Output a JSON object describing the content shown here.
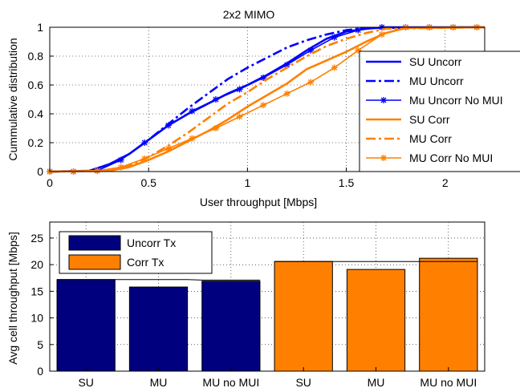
{
  "chart_data": [
    {
      "type": "line",
      "title": "2x2 MIMO",
      "xlabel": "User throughput [Mbps]",
      "ylabel": "Cummulative distribution",
      "xlim": [
        0,
        2.2
      ],
      "ylim": [
        0,
        1
      ],
      "xticks": [
        0,
        0.5,
        1,
        1.5,
        2
      ],
      "xtick_labels": [
        "0",
        "0.5",
        "1",
        "1.5",
        "2"
      ],
      "yticks": [
        0,
        0.2,
        0.4,
        0.6,
        0.8,
        1
      ],
      "ytick_labels": [
        "0",
        "0.2",
        "0.4",
        "0.6",
        "0.8",
        "1"
      ],
      "grid": true,
      "legend_position": "lower-right",
      "series": [
        {
          "name": "SU Uncorr",
          "color": "#0000ff",
          "style": "solid",
          "marker": "none",
          "x": [
            0,
            0.2,
            0.3,
            0.4,
            0.5,
            0.6,
            0.7,
            0.8,
            0.9,
            1.0,
            1.1,
            1.2,
            1.3,
            1.4,
            1.5,
            1.6,
            1.7,
            2.2
          ],
          "y": [
            0,
            0.005,
            0.05,
            0.12,
            0.22,
            0.32,
            0.4,
            0.47,
            0.54,
            0.6,
            0.67,
            0.75,
            0.84,
            0.92,
            0.97,
            0.99,
            1.0,
            1.0
          ]
        },
        {
          "name": "MU Uncorr",
          "color": "#0000ff",
          "style": "dashdot",
          "marker": "none",
          "x": [
            0,
            0.2,
            0.3,
            0.4,
            0.5,
            0.6,
            0.7,
            0.8,
            0.9,
            1.0,
            1.1,
            1.2,
            1.3,
            1.4,
            1.5,
            1.6,
            2.2
          ],
          "y": [
            0,
            0.005,
            0.05,
            0.12,
            0.22,
            0.33,
            0.44,
            0.54,
            0.64,
            0.72,
            0.79,
            0.86,
            0.91,
            0.95,
            0.98,
            0.995,
            1.0
          ]
        },
        {
          "name": "Mu Uncorr No MUI",
          "color": "#0000ff",
          "style": "solid",
          "marker": "star",
          "x": [
            0,
            0.12,
            0.24,
            0.36,
            0.48,
            0.6,
            0.72,
            0.84,
            0.96,
            1.08,
            1.2,
            1.32,
            1.44,
            1.56,
            1.68,
            1.8,
            1.92,
            2.04,
            2.16
          ],
          "y": [
            0,
            0,
            0.005,
            0.08,
            0.2,
            0.32,
            0.42,
            0.5,
            0.57,
            0.65,
            0.74,
            0.84,
            0.93,
            0.98,
            1.0,
            1.0,
            1.0,
            1.0,
            1.0
          ]
        },
        {
          "name": "SU Corr",
          "color": "#ff8000",
          "style": "solid",
          "marker": "none",
          "x": [
            0,
            0.3,
            0.4,
            0.5,
            0.6,
            0.7,
            0.8,
            0.9,
            1.0,
            1.1,
            1.2,
            1.3,
            1.4,
            1.5,
            1.6,
            1.7,
            1.8,
            2.2
          ],
          "y": [
            0,
            0.005,
            0.03,
            0.08,
            0.14,
            0.21,
            0.28,
            0.36,
            0.45,
            0.53,
            0.61,
            0.71,
            0.77,
            0.83,
            0.9,
            0.96,
            0.995,
            1.0
          ]
        },
        {
          "name": "MU Corr",
          "color": "#ff8000",
          "style": "dashdot",
          "marker": "none",
          "x": [
            0,
            0.3,
            0.4,
            0.5,
            0.6,
            0.7,
            0.8,
            0.9,
            1.0,
            1.1,
            1.2,
            1.3,
            1.4,
            1.5,
            1.6,
            1.7,
            2.2
          ],
          "y": [
            0,
            0.005,
            0.04,
            0.1,
            0.18,
            0.27,
            0.37,
            0.47,
            0.55,
            0.64,
            0.72,
            0.8,
            0.87,
            0.92,
            0.96,
            0.99,
            1.0
          ]
        },
        {
          "name": "MU Corr No MUI",
          "color": "#ff8000",
          "style": "solid",
          "marker": "star",
          "x": [
            0,
            0.12,
            0.24,
            0.36,
            0.48,
            0.6,
            0.72,
            0.84,
            0.96,
            1.08,
            1.2,
            1.32,
            1.44,
            1.56,
            1.68,
            1.8,
            1.92,
            2.04,
            2.16
          ],
          "y": [
            0,
            0,
            0.005,
            0.03,
            0.09,
            0.16,
            0.23,
            0.3,
            0.38,
            0.46,
            0.54,
            0.62,
            0.72,
            0.84,
            0.95,
            1.0,
            1.0,
            1.0,
            1.0
          ]
        }
      ]
    },
    {
      "type": "bar",
      "ylabel": "Avg cell throughput [Mbps]",
      "categories": [
        "SU",
        "MU",
        "MU no MUI",
        "SU",
        "MU",
        "MU no MUI"
      ],
      "values": [
        17.2,
        15.8,
        16.9,
        20.6,
        19.1,
        21.2
      ],
      "group": [
        0,
        0,
        0,
        1,
        1,
        1
      ],
      "reference_line_values": [
        17.2,
        17.2,
        17.1,
        20.6,
        20.6,
        20.6
      ],
      "ylim": [
        0,
        28
      ],
      "yticks": [
        0,
        5,
        10,
        15,
        20,
        25
      ],
      "ytick_labels": [
        "0",
        "5",
        "10",
        "15",
        "20",
        "25"
      ],
      "grid": true,
      "legend_position": "top-left",
      "legend": [
        {
          "name": "Uncorr Tx",
          "color": "#00007f"
        },
        {
          "name": "Corr Tx",
          "color": "#ff8000"
        }
      ]
    }
  ]
}
